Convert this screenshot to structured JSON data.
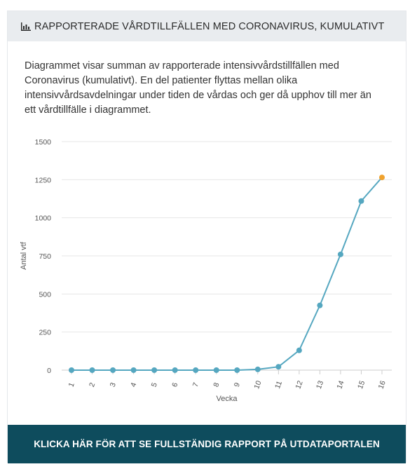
{
  "header": {
    "icon": "bar-chart-icon",
    "title": "RAPPORTERADE VÅRDTILLFÄLLEN MED CORONAVIRUS, KUMULATIVT"
  },
  "description": "Diagrammet visar summan av rapporterade intensivvårdstillfällen med Coronavirus (kumulativt). En del patienter flyttas mellan olika intensivvårdsavdelningar under tiden de vårdas och ger då upphov till mer än ett vårdtillfälle i diagrammet.",
  "cta": {
    "label": "KLICKA HÄR FÖR ATT SE FULLSTÄNDIG RAPPORT PÅ UTDATAPORTALEN"
  },
  "colors": {
    "line": "#55a7c0",
    "last_point": "#f0a22e",
    "grid": "#e6e6e6",
    "cta_bg": "#0e4c5d",
    "header_bg": "#e9ecef"
  },
  "chart_data": {
    "type": "line",
    "xlabel": "Vecka",
    "ylabel": "Antal vtf",
    "categories": [
      "1",
      "2",
      "3",
      "4",
      "5",
      "6",
      "7",
      "8",
      "9",
      "10",
      "11",
      "12",
      "13",
      "14",
      "15",
      "16"
    ],
    "series": [
      {
        "values": [
          0,
          0,
          0,
          0,
          0,
          0,
          0,
          0,
          0,
          5,
          22,
          130,
          425,
          760,
          1110,
          1265
        ]
      }
    ],
    "ylim": [
      0,
      1500
    ],
    "yticks": [
      "0",
      "250",
      "500",
      "750",
      "1000",
      "1250",
      "1500"
    ],
    "grid": true
  }
}
